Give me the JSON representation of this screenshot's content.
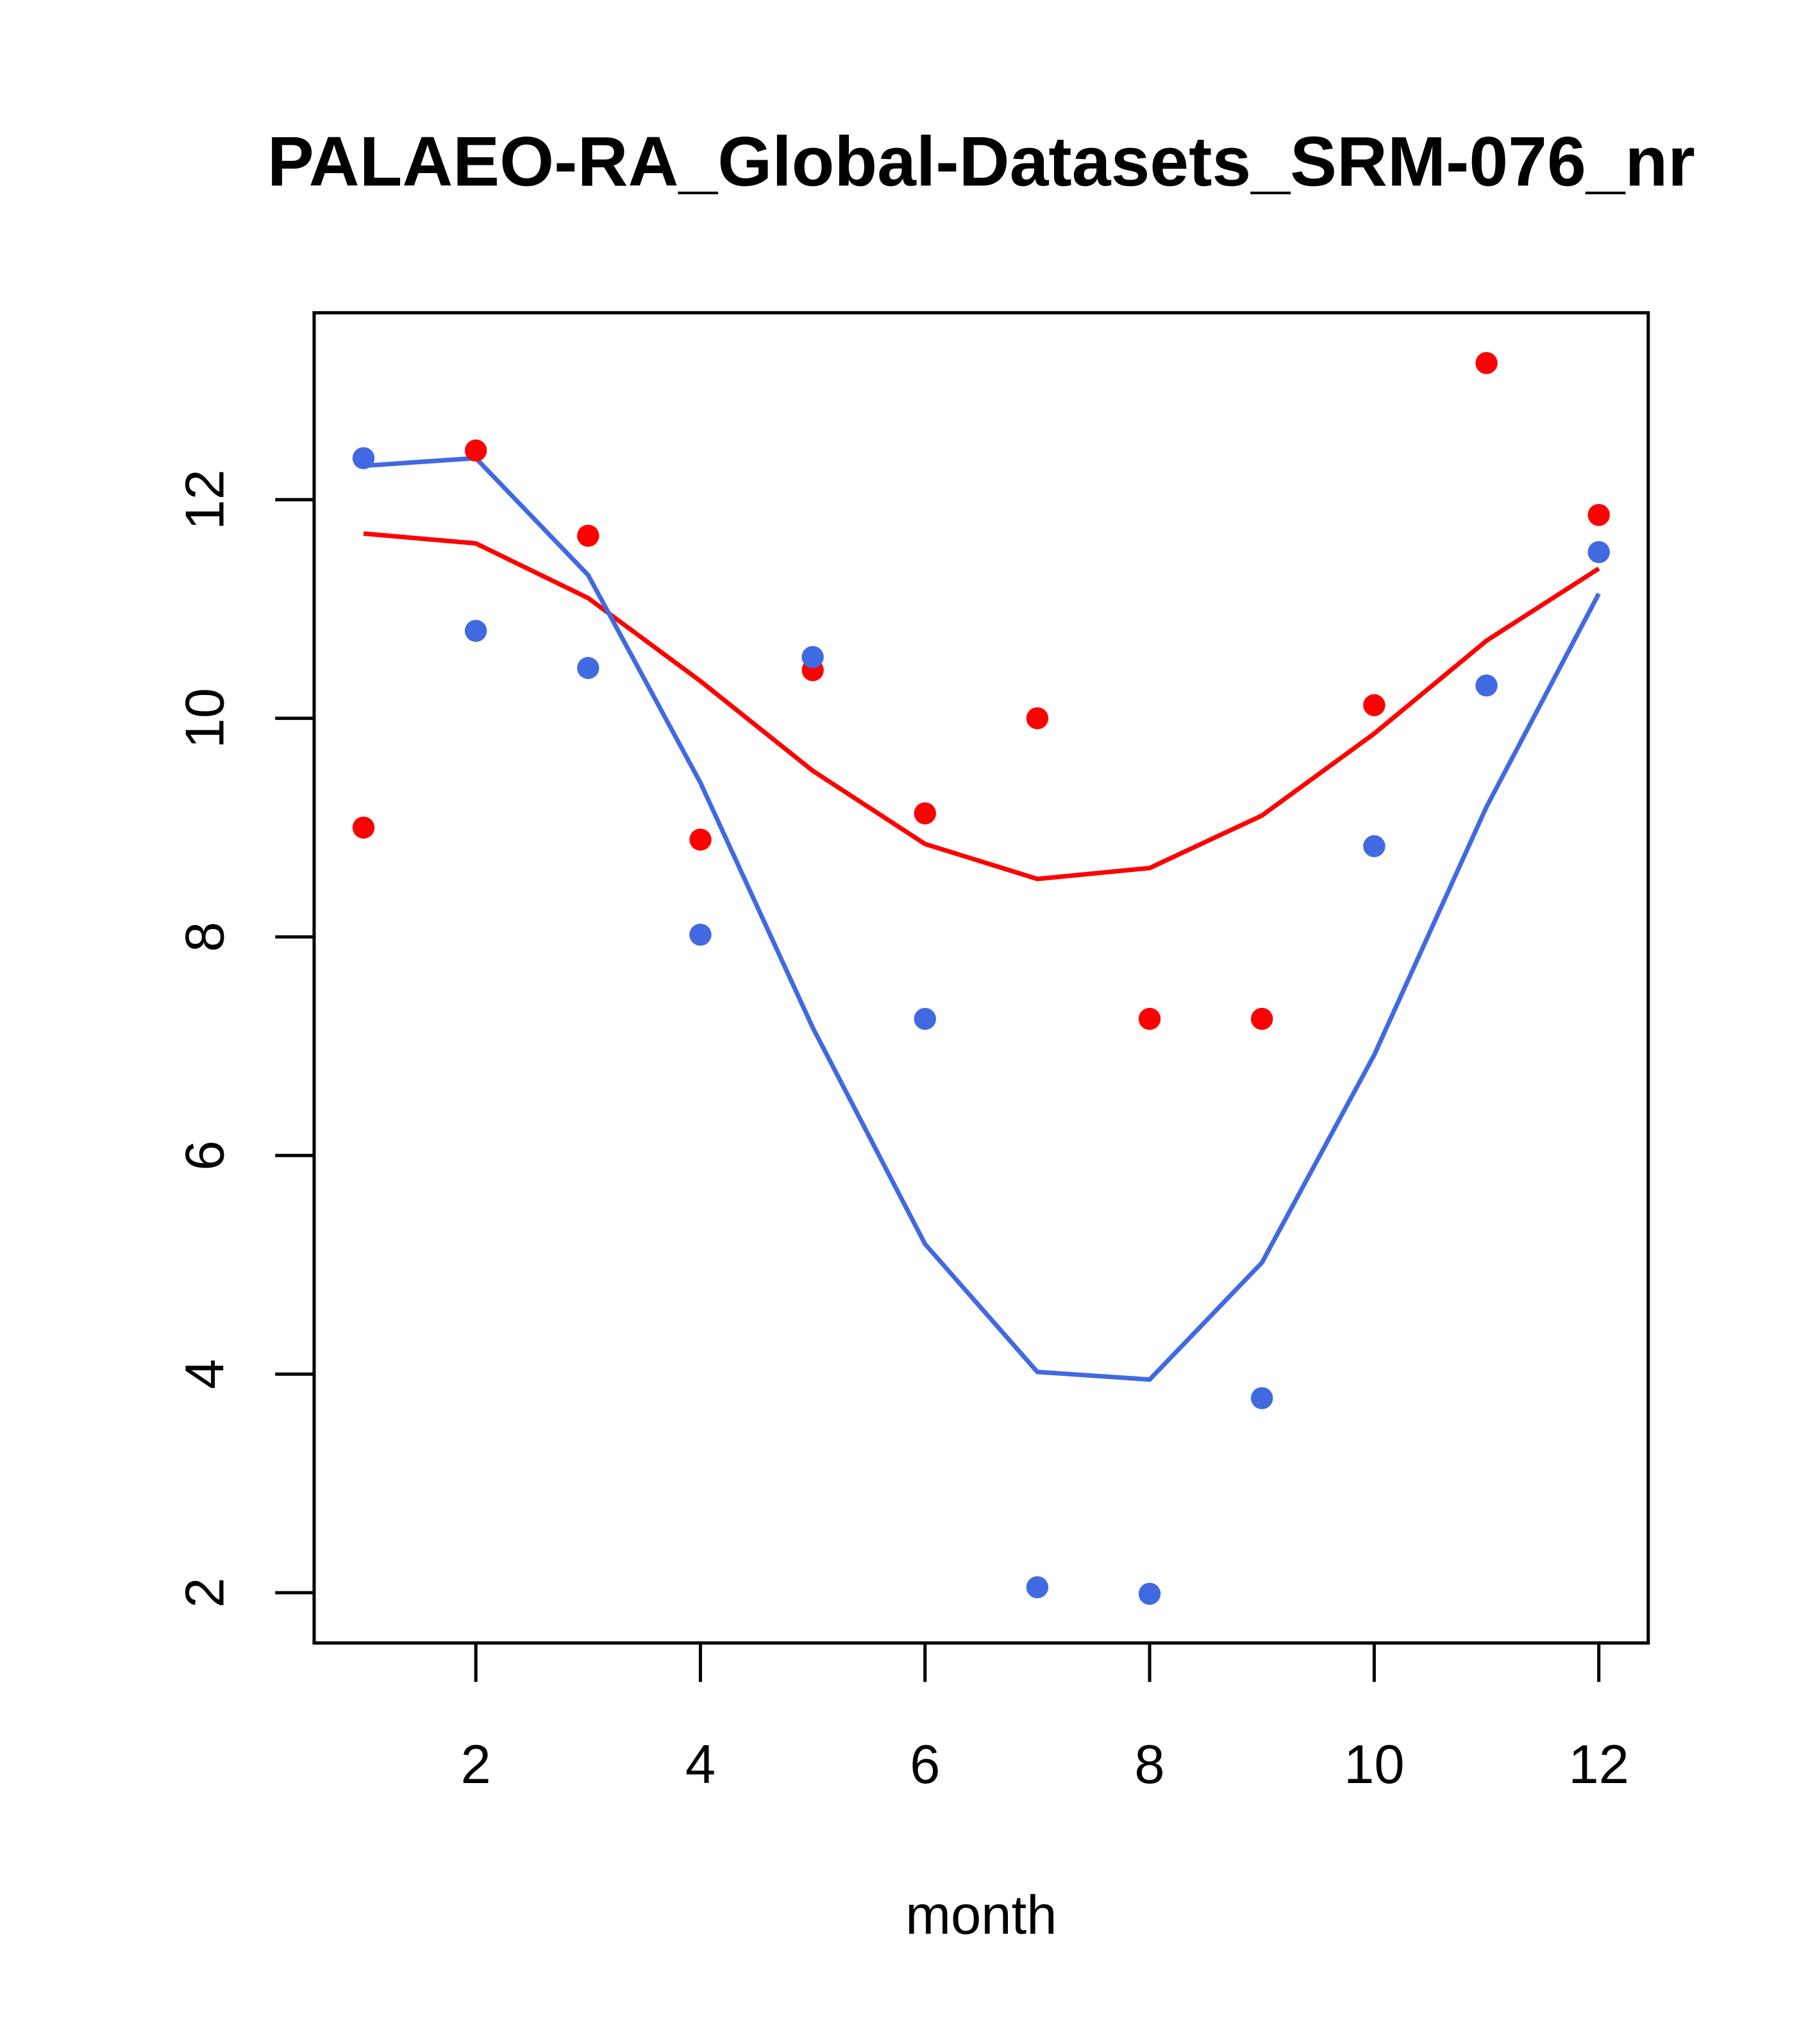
{
  "chart_data": {
    "type": "scatter",
    "title": "PALAEO-RA_Global-Datasets_SRM-076_nr",
    "xlabel": "month",
    "ylabel": "",
    "xlim": [
      0.56,
      12.44
    ],
    "ylim": [
      1.54,
      13.71
    ],
    "xticks": [
      2,
      4,
      6,
      8,
      10,
      12
    ],
    "yticks": [
      2,
      4,
      6,
      8,
      10,
      12
    ],
    "grid": false,
    "x": [
      1,
      2,
      3,
      4,
      5,
      6,
      7,
      8,
      9,
      10,
      11,
      12
    ],
    "series": [
      {
        "name": "red points",
        "kind": "points",
        "color": "#ff0000",
        "values": [
          9.0,
          12.45,
          11.67,
          8.89,
          10.44,
          9.13,
          10.0,
          7.25,
          7.25,
          10.12,
          13.25,
          11.86
        ]
      },
      {
        "name": "blue points",
        "kind": "points",
        "color": "#4169e1",
        "values": [
          12.38,
          10.8,
          10.46,
          8.02,
          10.56,
          7.25,
          2.05,
          1.99,
          3.78,
          8.83,
          10.3,
          11.52
        ]
      },
      {
        "name": "red line",
        "kind": "line",
        "color": "#ff0000",
        "values": [
          11.69,
          11.6,
          11.1,
          10.34,
          9.52,
          8.85,
          8.53,
          8.63,
          9.11,
          9.86,
          10.71,
          11.37
        ]
      },
      {
        "name": "blue line",
        "kind": "line",
        "color": "#4169e1",
        "values": [
          12.31,
          12.38,
          11.31,
          9.41,
          7.17,
          5.19,
          4.02,
          3.95,
          5.02,
          6.92,
          9.19,
          11.14
        ]
      }
    ]
  }
}
